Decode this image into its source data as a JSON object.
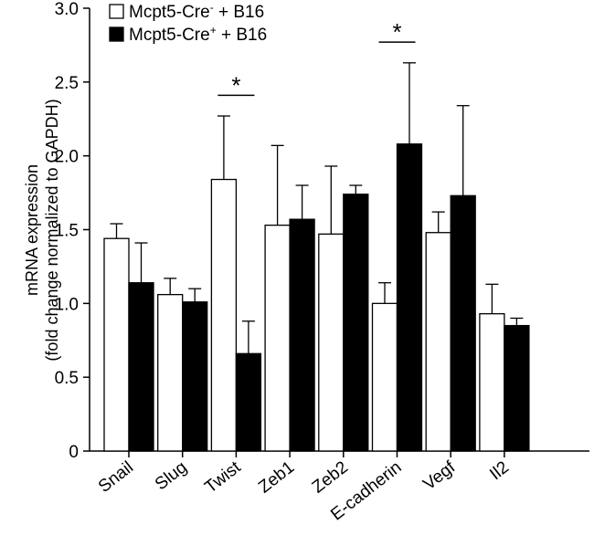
{
  "chart_data": {
    "type": "bar",
    "title": "",
    "xlabel": "",
    "ylabel": [
      "mRNA expression",
      "(fold change normalized to GAPDH)"
    ],
    "ylim": [
      0,
      3.0
    ],
    "yticks": [
      "0",
      "0.5",
      "1.0",
      "1.5",
      "2.0",
      "2.5",
      "3.0"
    ],
    "ytick_values": [
      0,
      0.5,
      1.0,
      1.5,
      2.0,
      2.5,
      3.0
    ],
    "grid": false,
    "legend_position": "top-left",
    "categories": [
      "Snail",
      "Slug",
      "Twist",
      "Zeb1",
      "Zeb2",
      "E-cadherin",
      "Vegf",
      "Il2"
    ],
    "series": [
      {
        "name": "Mcpt5-Cre",
        "superscript": "-",
        "suffix": " + B16",
        "fill": "#ffffff",
        "values": [
          1.44,
          1.06,
          1.84,
          1.53,
          1.47,
          1.0,
          1.48,
          0.93
        ],
        "errors": [
          0.1,
          0.11,
          0.43,
          0.54,
          0.46,
          0.14,
          0.14,
          0.2
        ]
      },
      {
        "name": "Mcpt5-Cre",
        "superscript": "+",
        "suffix": " + B16",
        "fill": "#000000",
        "values": [
          1.14,
          1.01,
          0.66,
          1.57,
          1.74,
          2.08,
          1.73,
          0.85
        ],
        "errors": [
          0.27,
          0.09,
          0.22,
          0.23,
          0.06,
          0.55,
          0.61,
          0.05
        ]
      }
    ],
    "significance": [
      {
        "category": "Twist",
        "label": "*",
        "bar_y": 2.41
      },
      {
        "category": "E-cadherin",
        "label": "*",
        "bar_y": 2.77
      }
    ]
  }
}
